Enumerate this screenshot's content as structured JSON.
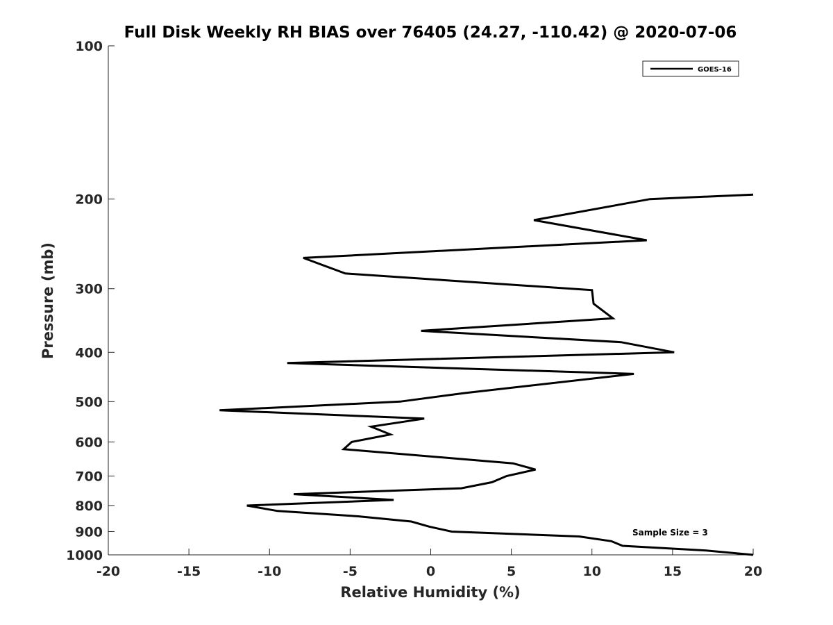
{
  "chart_data": {
    "type": "line",
    "title": "Full Disk Weekly RH BIAS over 76405 (24.27, -110.42) @ 2020-07-06",
    "xlabel": "Relative Humidity (%)",
    "ylabel": "Pressure (mb)",
    "xlim": [
      -20,
      20
    ],
    "ylim": [
      100,
      1000
    ],
    "y_scale": "log",
    "y_reversed": true,
    "x_ticks": [
      "-20",
      "-15",
      "-10",
      "-5",
      "0",
      "5",
      "10",
      "15",
      "20"
    ],
    "y_ticks": [
      "100",
      "200",
      "300",
      "400",
      "500",
      "600",
      "700",
      "800",
      "900",
      "1000"
    ],
    "grid": false,
    "legend_position": "top-right",
    "annotation": "Sample Size = 3",
    "series": [
      {
        "name": "GOES-16",
        "color": "#000000",
        "points": [
          {
            "x": 20.0,
            "y": 196
          },
          {
            "x": 13.6,
            "y": 200
          },
          {
            "x": 6.4,
            "y": 220
          },
          {
            "x": 13.4,
            "y": 241
          },
          {
            "x": -7.9,
            "y": 261
          },
          {
            "x": -5.3,
            "y": 280
          },
          {
            "x": 10.0,
            "y": 302
          },
          {
            "x": 10.1,
            "y": 321
          },
          {
            "x": 11.3,
            "y": 343
          },
          {
            "x": -0.6,
            "y": 363
          },
          {
            "x": 11.8,
            "y": 382
          },
          {
            "x": 15.1,
            "y": 400
          },
          {
            "x": -8.9,
            "y": 420
          },
          {
            "x": 12.6,
            "y": 441
          },
          {
            "x": 2.1,
            "y": 481
          },
          {
            "x": -1.9,
            "y": 500
          },
          {
            "x": -13.1,
            "y": 520
          },
          {
            "x": -0.4,
            "y": 540
          },
          {
            "x": -3.7,
            "y": 560
          },
          {
            "x": -2.5,
            "y": 580
          },
          {
            "x": -4.9,
            "y": 600
          },
          {
            "x": -5.4,
            "y": 620
          },
          {
            "x": 5.1,
            "y": 661
          },
          {
            "x": 6.5,
            "y": 680
          },
          {
            "x": 4.7,
            "y": 700
          },
          {
            "x": 3.8,
            "y": 720
          },
          {
            "x": 1.9,
            "y": 740
          },
          {
            "x": -8.5,
            "y": 760
          },
          {
            "x": -2.3,
            "y": 780
          },
          {
            "x": -11.4,
            "y": 800
          },
          {
            "x": -9.5,
            "y": 820
          },
          {
            "x": -4.5,
            "y": 840
          },
          {
            "x": -1.2,
            "y": 860
          },
          {
            "x": -0.1,
            "y": 880
          },
          {
            "x": 1.3,
            "y": 900
          },
          {
            "x": 9.2,
            "y": 920
          },
          {
            "x": 11.2,
            "y": 940
          },
          {
            "x": 11.9,
            "y": 960
          },
          {
            "x": 17.0,
            "y": 980
          },
          {
            "x": 20.0,
            "y": 1000
          }
        ]
      }
    ]
  }
}
